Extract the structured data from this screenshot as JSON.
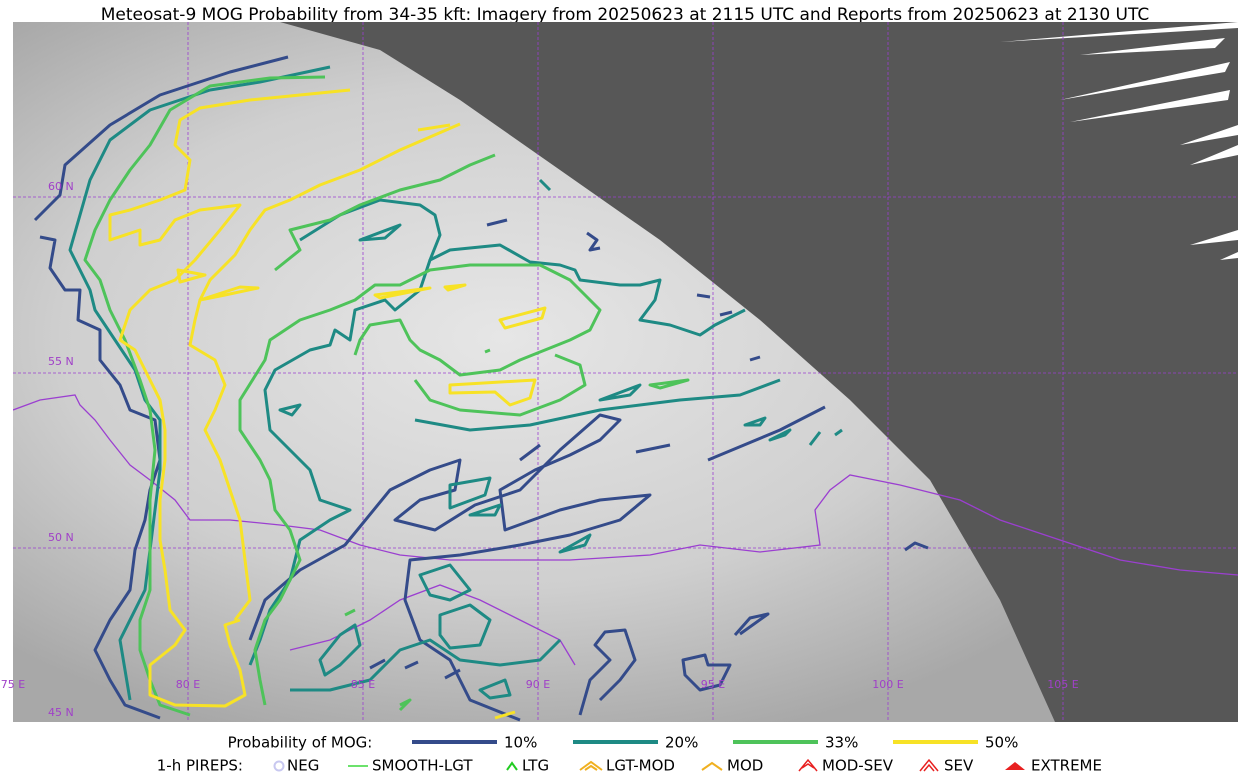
{
  "title": "Meteosat-9 MOG Probability from 34-35 kft: Imagery from 20250623 at 2115 UTC and Reports from 20250623 at 2130 UTC",
  "grid_labels": {
    "lat": [
      "60 N",
      "55 N",
      "50 N",
      "45 N"
    ],
    "lon": [
      "75 E",
      "80 E",
      "85 E",
      "90 E",
      "95 E",
      "100 E",
      "105 E"
    ]
  },
  "legend": {
    "probability_title": "Probability of MOG:",
    "probability_levels": [
      {
        "label": "10%",
        "color": "#344b8a"
      },
      {
        "label": "20%",
        "color": "#1e8a84"
      },
      {
        "label": "33%",
        "color": "#4ec35a"
      },
      {
        "label": "50%",
        "color": "#f7e226"
      }
    ],
    "pireps_title": "1-h PIREPS:",
    "pireps": [
      {
        "label": "NEG",
        "color": "#c8c8f0"
      },
      {
        "label": "SMOOTH-LGT",
        "color": "#3cd83c"
      },
      {
        "label": "LTG",
        "color": "#22cc22"
      },
      {
        "label": "LGT-MOD",
        "color": "#f0b020"
      },
      {
        "label": "MOD",
        "color": "#f0b020"
      },
      {
        "label": "MOD-SEV",
        "color": "#e82020"
      },
      {
        "label": "SEV",
        "color": "#e82020"
      },
      {
        "label": "EXTREME",
        "color": "#e82020"
      }
    ]
  }
}
